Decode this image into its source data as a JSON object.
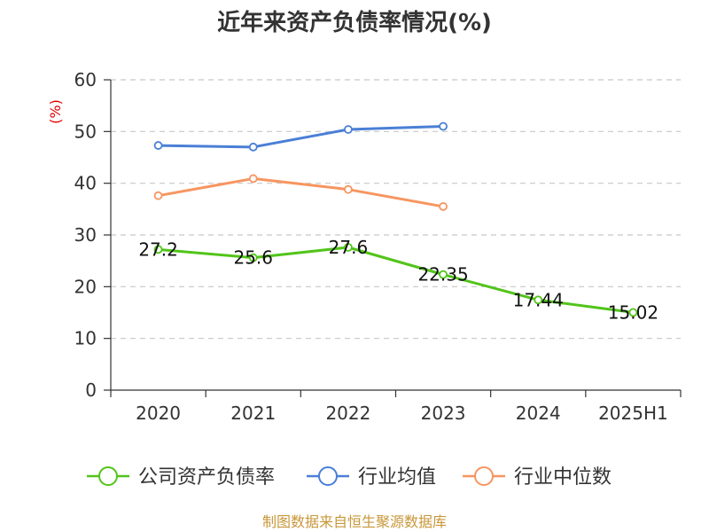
{
  "chart_data": {
    "type": "line",
    "title": "近年来资产负债率情况(%)",
    "ylabel": "(%)",
    "xlabel": "",
    "categories": [
      "2020",
      "2021",
      "2022",
      "2023",
      "2024",
      "2025H1"
    ],
    "ylim": [
      0,
      60
    ],
    "yticks": [
      0,
      10,
      20,
      30,
      40,
      50,
      60
    ],
    "grid": true,
    "legend_position": "bottom",
    "series": [
      {
        "name": "公司资产负债率",
        "color": "#52c41a",
        "values": [
          27.2,
          25.6,
          27.6,
          22.35,
          17.44,
          15.02
        ],
        "labels": [
          "27.2",
          "25.6",
          "27.6",
          "22.35",
          "17.44",
          "15.02"
        ]
      },
      {
        "name": "行业均值",
        "color": "#4a7fd6",
        "values": [
          47.3,
          47.0,
          50.4,
          51.0,
          null,
          null
        ]
      },
      {
        "name": "行业中位数",
        "color": "#f79560",
        "values": [
          37.6,
          40.9,
          38.8,
          35.5,
          null,
          null
        ]
      }
    ],
    "source": "制图数据来自恒生聚源数据库"
  }
}
